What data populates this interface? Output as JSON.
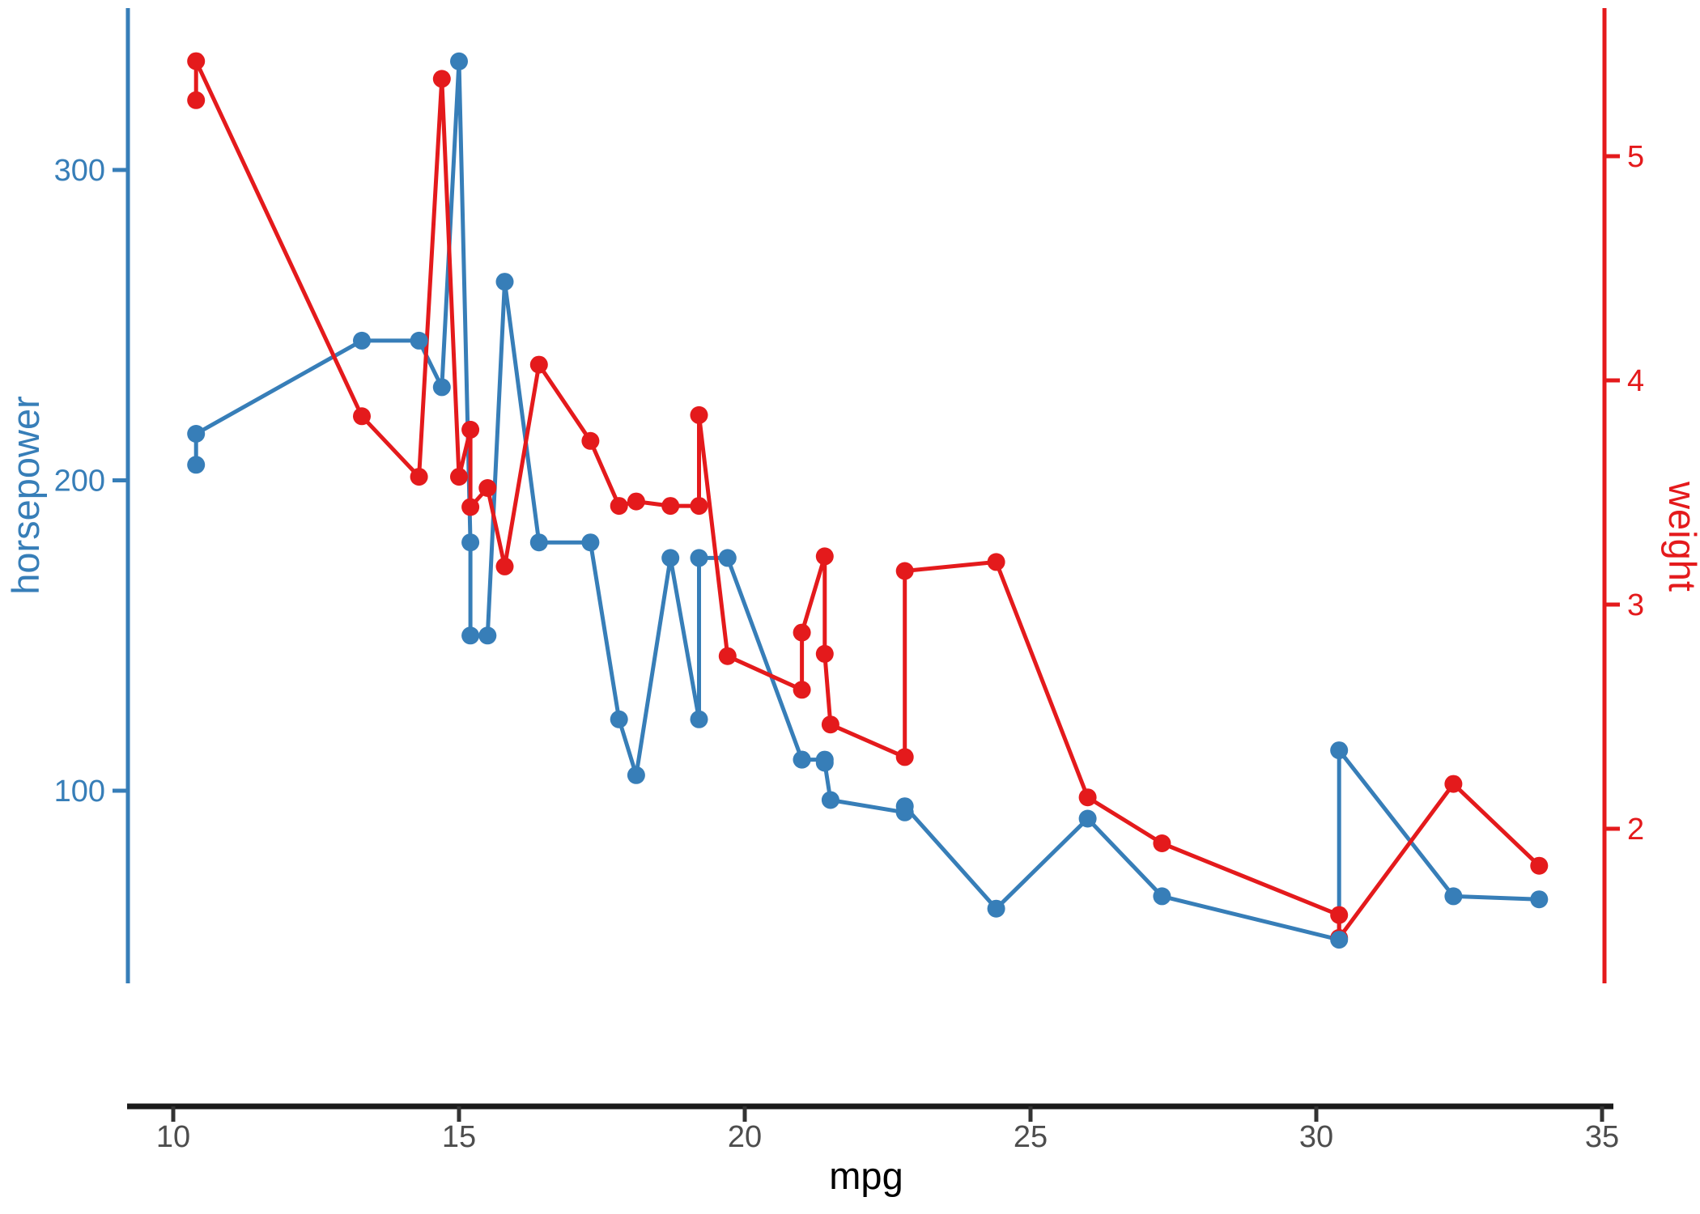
{
  "chart_data": {
    "type": "line",
    "title": "",
    "xlabel": "mpg",
    "ylabel_left": "horsepower",
    "ylabel_right": "weight",
    "background": "#ffffff",
    "legend": "none",
    "grid": false,
    "x": [
      10.4,
      10.4,
      13.3,
      14.3,
      14.7,
      15.0,
      15.2,
      15.2,
      15.5,
      15.8,
      16.4,
      17.3,
      17.8,
      18.1,
      18.7,
      19.2,
      19.2,
      19.7,
      21.0,
      21.0,
      21.4,
      21.4,
      21.5,
      22.8,
      22.8,
      24.4,
      26.0,
      27.3,
      30.4,
      30.4,
      32.4,
      33.9
    ],
    "series": [
      {
        "name": "horsepower",
        "axis": "left",
        "color": "#377EB8",
        "marker": "circle",
        "values": [
          205,
          215,
          245,
          245,
          230,
          335,
          180,
          150,
          150,
          264,
          180,
          180,
          123,
          105,
          175,
          123,
          175,
          175,
          110,
          110,
          110,
          109,
          97,
          93,
          95,
          62,
          91,
          66,
          52,
          113,
          66,
          65
        ]
      },
      {
        "name": "weight",
        "axis": "right",
        "color": "#E41A1C",
        "marker": "circle",
        "values": [
          5.25,
          5.424,
          3.84,
          3.57,
          5.345,
          3.57,
          3.78,
          3.435,
          3.52,
          3.17,
          4.07,
          3.73,
          3.44,
          3.46,
          3.44,
          3.44,
          3.845,
          2.77,
          2.62,
          2.875,
          3.215,
          2.78,
          2.465,
          2.32,
          3.15,
          3.19,
          2.14,
          1.935,
          1.615,
          1.513,
          2.2,
          1.835
        ]
      }
    ],
    "x_axis": {
      "ticks": [
        10,
        15,
        20,
        25,
        30,
        35
      ],
      "range": [
        10,
        35
      ],
      "line_color": "#1A1A1A",
      "tick_color": "#333333",
      "tick_label_color": "#4D4D4D",
      "title_color": "#000000"
    },
    "left_axis": {
      "ticks": [
        100,
        200,
        300
      ],
      "range_hint": [
        40,
        340
      ],
      "color": "#377EB8"
    },
    "right_axis": {
      "ticks": [
        2,
        3,
        4,
        5
      ],
      "range_hint": [
        1.4,
        5.5
      ],
      "color": "#E41A1C"
    }
  }
}
